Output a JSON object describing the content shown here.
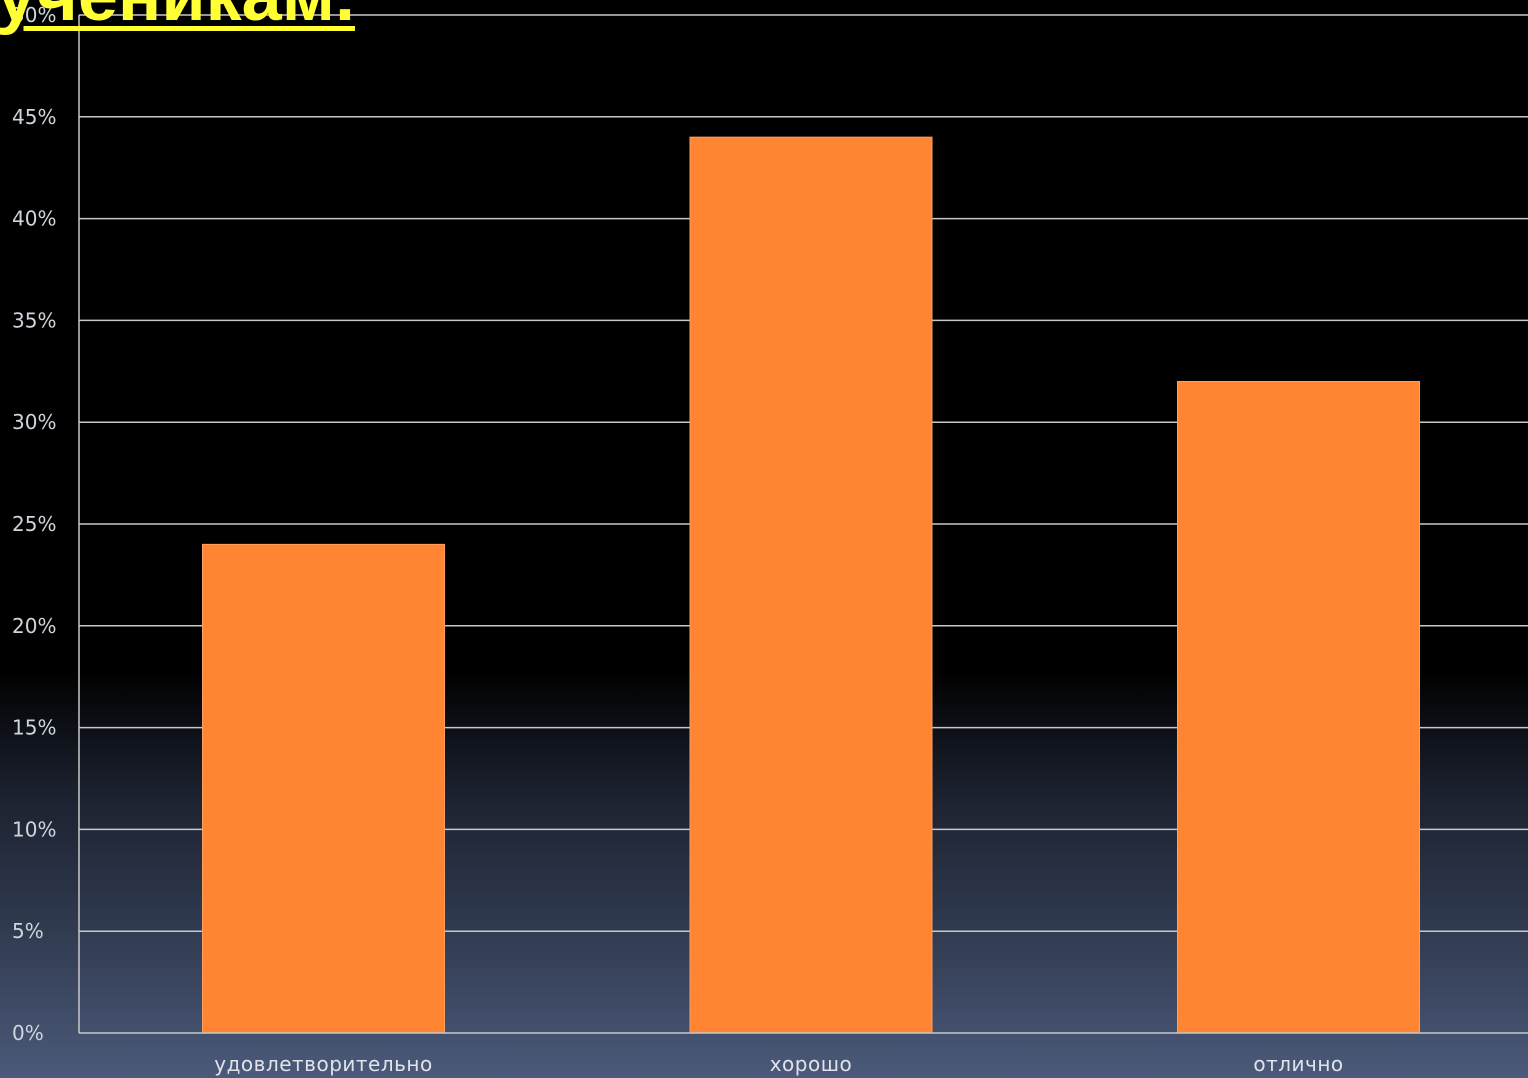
{
  "header": {
    "title_fragment": "ученикам."
  },
  "chart_data": {
    "type": "bar",
    "categories": [
      "удовлетворительно",
      "хорошо",
      "отлично"
    ],
    "values": [
      24,
      44,
      32
    ],
    "ylim": [
      0,
      50
    ],
    "ytick_step": 5,
    "ytick_suffix": "%",
    "grid": true,
    "bar_color": "#ff8533",
    "grid_color": "#c8c8c8"
  }
}
